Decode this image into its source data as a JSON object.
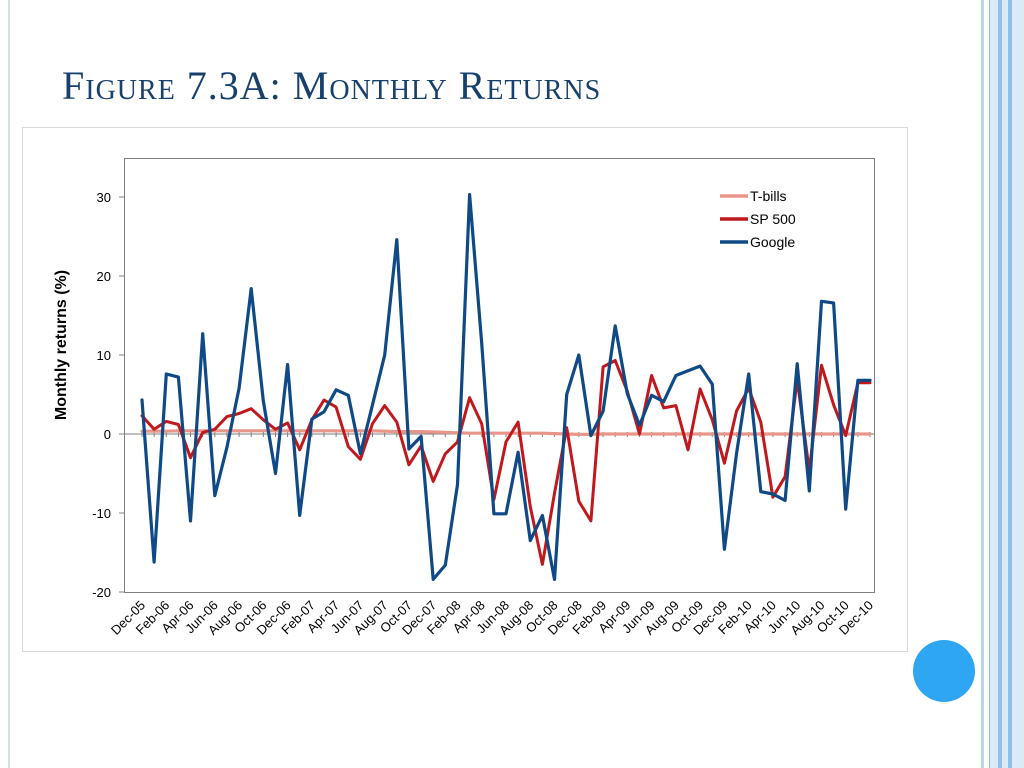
{
  "slide": {
    "title": "Figure 7.3A: Monthly Returns",
    "title_color": "#17406d",
    "accent_circle_color": "#2ea6f2",
    "side_rule_colors": [
      "#b9d6f0",
      "#8fbfea"
    ]
  },
  "chart_data": {
    "type": "line",
    "title": "",
    "xlabel": "",
    "ylabel": "Monthly returns (%)",
    "ylim": [
      -20,
      35
    ],
    "yticks": [
      -20,
      -10,
      0,
      10,
      20,
      30
    ],
    "grid": false,
    "legend_position": "top-right",
    "x_tick_labels": [
      "Dec-05",
      "Feb-06",
      "Apr-06",
      "Jun-06",
      "Aug-06",
      "Oct-06",
      "Dec-06",
      "Feb-07",
      "Apr-07",
      "Jun-07",
      "Aug-07",
      "Oct-07",
      "Dec-07",
      "Feb-08",
      "Apr-08",
      "Jun-08",
      "Aug-08",
      "Oct-08",
      "Dec-08",
      "Feb-09",
      "Apr-09",
      "Jun-09",
      "Aug-09",
      "Oct-09",
      "Dec-09",
      "Feb-10",
      "Apr-10",
      "Jun-10",
      "Aug-10",
      "Oct-10",
      "Dec-10"
    ],
    "categories": [
      "Dec-05",
      "Jan-06",
      "Feb-06",
      "Mar-06",
      "Apr-06",
      "May-06",
      "Jun-06",
      "Jul-06",
      "Aug-06",
      "Sep-06",
      "Oct-06",
      "Nov-06",
      "Dec-06",
      "Jan-07",
      "Feb-07",
      "Mar-07",
      "Apr-07",
      "May-07",
      "Jun-07",
      "Jul-07",
      "Aug-07",
      "Sep-07",
      "Oct-07",
      "Nov-07",
      "Dec-07",
      "Jan-08",
      "Feb-08",
      "Mar-08",
      "Apr-08",
      "May-08",
      "Jun-08",
      "Jul-08",
      "Aug-08",
      "Sep-08",
      "Oct-08",
      "Nov-08",
      "Dec-08",
      "Jan-09",
      "Feb-09",
      "Mar-09",
      "Apr-09",
      "May-09",
      "Jun-09",
      "Jul-09",
      "Aug-09",
      "Sep-09",
      "Oct-09",
      "Nov-09",
      "Dec-09",
      "Jan-10",
      "Feb-10",
      "Mar-10",
      "Apr-10",
      "May-10",
      "Jun-10",
      "Jul-10",
      "Aug-10",
      "Sep-10",
      "Oct-10",
      "Nov-10",
      "Dec-10"
    ],
    "series": [
      {
        "name": "T-bills",
        "color": "#e8958a",
        "values": [
          0.35,
          0.35,
          0.35,
          0.4,
          0.4,
          0.4,
          0.4,
          0.4,
          0.4,
          0.4,
          0.4,
          0.4,
          0.4,
          0.4,
          0.4,
          0.4,
          0.4,
          0.4,
          0.4,
          0.4,
          0.35,
          0.3,
          0.3,
          0.3,
          0.25,
          0.2,
          0.15,
          0.1,
          0.1,
          0.1,
          0.1,
          0.1,
          0.1,
          0.1,
          0.05,
          0.0,
          -0.05,
          -0.05,
          0.0,
          0.0,
          0.0,
          0.0,
          0.0,
          0.0,
          0.0,
          0.0,
          0.0,
          0.0,
          0.0,
          0.0,
          0.0,
          0.0,
          0.0,
          0.0,
          0.0,
          0.0,
          0.0,
          0.0,
          0.0,
          0.0,
          0.0
        ]
      },
      {
        "name": "SP 500",
        "color": "#c0191d",
        "values": [
          2.3,
          0.6,
          1.6,
          1.2,
          -3.0,
          0.2,
          0.6,
          2.2,
          2.6,
          3.2,
          1.8,
          0.6,
          1.4,
          -2.0,
          1.8,
          4.3,
          3.4,
          -1.6,
          -3.2,
          1.3,
          3.6,
          1.5,
          -3.9,
          -1.5,
          -6.0,
          -2.5,
          -1.0,
          4.6,
          1.3,
          -8.3,
          -1.0,
          1.5,
          -9.2,
          -16.5,
          -7.5,
          0.8,
          -8.5,
          -11.0,
          8.5,
          9.3,
          5.4,
          0.0,
          7.4,
          3.3,
          3.6,
          -2.0,
          5.7,
          1.8,
          -3.7,
          2.9,
          5.8,
          1.5,
          -8.0,
          -5.4,
          6.9,
          -4.7,
          8.7,
          3.7,
          -0.2,
          6.5,
          6.5
        ]
      },
      {
        "name": "Google",
        "color": "#0f4a86",
        "values": [
          4.3,
          -16.2,
          7.6,
          7.2,
          -11.0,
          12.7,
          -7.8,
          -1.7,
          5.8,
          18.4,
          4.2,
          -5.0,
          8.8,
          -10.3,
          1.9,
          2.8,
          5.6,
          4.9,
          -2.5,
          3.7,
          10.0,
          24.6,
          -1.9,
          -0.3,
          -18.4,
          -16.6,
          -6.4,
          30.3,
          11.5,
          -10.1,
          -10.1,
          -2.3,
          -13.5,
          -10.3,
          -18.4,
          5.0,
          10.0,
          -0.2,
          2.9,
          13.7,
          5.1,
          1.1,
          4.9,
          4.1,
          7.4,
          8.0,
          8.6,
          6.3,
          -14.6,
          -2.5,
          7.6,
          -7.3,
          -7.6,
          -8.4,
          8.9,
          -7.2,
          16.8,
          16.6,
          -9.5,
          6.8,
          6.8
        ]
      }
    ]
  }
}
